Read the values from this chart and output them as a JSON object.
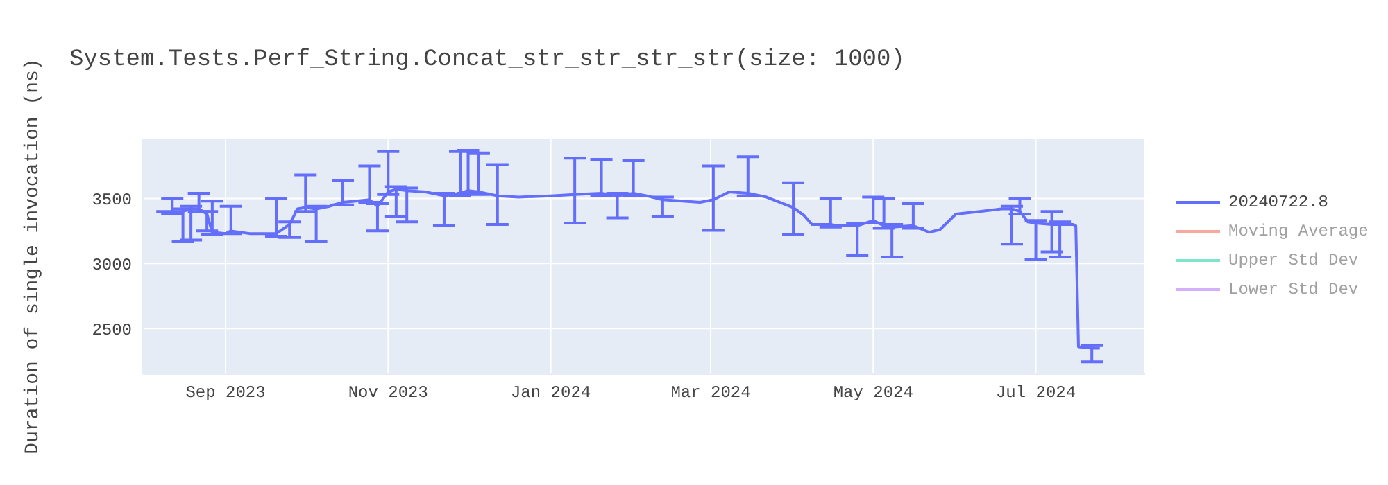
{
  "chart_data": {
    "type": "line",
    "title": "System.Tests.Perf_String.Concat_str_str_str_str(size: 1000)",
    "ylabel": "Duration of single invocation (ns)",
    "x": [
      "2023-08-06",
      "2023-08-12",
      "2023-08-16",
      "2023-08-19",
      "2023-08-22",
      "2023-08-25",
      "2023-08-27",
      "2023-09-01",
      "2023-09-03",
      "2023-09-10",
      "2023-09-20",
      "2023-09-25",
      "2023-09-28",
      "2023-10-01",
      "2023-10-05",
      "2023-10-10",
      "2023-10-15",
      "2023-10-20",
      "2023-10-25",
      "2023-10-28",
      "2023-11-01",
      "2023-11-04",
      "2023-11-08",
      "2023-11-15",
      "2023-11-22",
      "2023-11-28",
      "2023-12-01",
      "2023-12-05",
      "2023-12-12",
      "2023-12-20",
      "2024-01-01",
      "2024-01-10",
      "2024-01-20",
      "2024-01-26",
      "2024-02-01",
      "2024-02-06",
      "2024-02-12",
      "2024-02-26",
      "2024-03-02",
      "2024-03-08",
      "2024-03-15",
      "2024-03-22",
      "2024-04-01",
      "2024-04-05",
      "2024-04-08",
      "2024-04-15",
      "2024-04-18",
      "2024-04-25",
      "2024-05-01",
      "2024-05-05",
      "2024-05-08",
      "2024-05-16",
      "2024-05-22",
      "2024-05-26",
      "2024-06-01",
      "2024-06-10",
      "2024-06-18",
      "2024-06-22",
      "2024-06-25",
      "2024-06-28",
      "2024-07-01",
      "2024-07-07",
      "2024-07-10",
      "2024-07-15",
      "2024-07-16",
      "2024-07-17",
      "2024-07-22",
      "2024-07-25"
    ],
    "series": [
      {
        "name": "20240722.8",
        "color": "#636efa",
        "values": [
          3400,
          3400,
          3400,
          3420,
          3420,
          3380,
          3240,
          3230,
          3250,
          3230,
          3230,
          3300,
          3420,
          3430,
          3420,
          3440,
          3470,
          3480,
          3490,
          3440,
          3550,
          3570,
          3560,
          3550,
          3520,
          3540,
          3560,
          3550,
          3520,
          3510,
          3520,
          3530,
          3540,
          3520,
          3540,
          3520,
          3490,
          3470,
          3490,
          3550,
          3540,
          3510,
          3430,
          3370,
          3300,
          3300,
          3290,
          3290,
          3330,
          3290,
          3280,
          3290,
          3240,
          3260,
          3380,
          3400,
          3420,
          3420,
          3400,
          3320,
          3310,
          3300,
          3300,
          3300,
          3290,
          2360,
          2350,
          2350
        ],
        "errors": [
          null,
          [
            3380,
            3500
          ],
          [
            3170,
            3420
          ],
          [
            3180,
            3440
          ],
          [
            3400,
            3540
          ],
          [
            3250,
            3400
          ],
          [
            3220,
            3480
          ],
          null,
          [
            3230,
            3440
          ],
          null,
          [
            3210,
            3500
          ],
          [
            3200,
            3320
          ],
          null,
          [
            3400,
            3680
          ],
          [
            3170,
            3440
          ],
          null,
          [
            3450,
            3640
          ],
          null,
          [
            3470,
            3750
          ],
          [
            3250,
            3460
          ],
          [
            3530,
            3860
          ],
          [
            3360,
            3590
          ],
          [
            3320,
            3580
          ],
          null,
          [
            3290,
            3540
          ],
          [
            3520,
            3860
          ],
          [
            3540,
            3870
          ],
          [
            3530,
            3850
          ],
          [
            3300,
            3760
          ],
          null,
          null,
          [
            3310,
            3810
          ],
          [
            3520,
            3800
          ],
          [
            3350,
            3540
          ],
          [
            3520,
            3790
          ],
          null,
          [
            3360,
            3510
          ],
          null,
          [
            3255,
            3750
          ],
          null,
          [
            3520,
            3820
          ],
          null,
          [
            3220,
            3620
          ],
          null,
          null,
          [
            3280,
            3500
          ],
          null,
          [
            3060,
            3310
          ],
          [
            3310,
            3510
          ],
          [
            3270,
            3500
          ],
          [
            3050,
            3300
          ],
          [
            3270,
            3460
          ],
          null,
          null,
          null,
          null,
          null,
          [
            3150,
            3440
          ],
          [
            3380,
            3500
          ],
          null,
          [
            3030,
            3330
          ],
          [
            3090,
            3400
          ],
          [
            3050,
            3320
          ],
          null,
          null,
          null,
          [
            2245,
            2370
          ],
          null
        ]
      },
      {
        "name": "Moving Average",
        "color": "#ef553b",
        "values": [
          null,
          null,
          null,
          null,
          null,
          null,
          null,
          null,
          null,
          null,
          null,
          null,
          null,
          null,
          null,
          null,
          null,
          null,
          null,
          null,
          null,
          null,
          null,
          null,
          null,
          null,
          null,
          null,
          null,
          null,
          null,
          null,
          null,
          null,
          null,
          null,
          null,
          null,
          null,
          null,
          null,
          null,
          null,
          null,
          null,
          null,
          null,
          null,
          null,
          null,
          null,
          null,
          null,
          null,
          null,
          null,
          null,
          null,
          null,
          null,
          null,
          null,
          null,
          null,
          null,
          null,
          null,
          null
        ]
      },
      {
        "name": "Upper Std Dev",
        "color": "#00cc96",
        "values": [
          null,
          null,
          null,
          null,
          null,
          null,
          null,
          null,
          null,
          null,
          null,
          null,
          null,
          null,
          null,
          null,
          null,
          null,
          null,
          null,
          null,
          null,
          null,
          null,
          null,
          null,
          null,
          null,
          null,
          null,
          null,
          null,
          null,
          null,
          null,
          null,
          null,
          null,
          null,
          null,
          null,
          null,
          null,
          null,
          null,
          null,
          null,
          null,
          null,
          null,
          null,
          null,
          null,
          null,
          null,
          null,
          null,
          null,
          null,
          null,
          null,
          null,
          null,
          null,
          null,
          null,
          null,
          null
        ]
      },
      {
        "name": "Lower Std Dev",
        "color": "#ab63fa",
        "values": [
          null,
          null,
          null,
          null,
          null,
          null,
          null,
          null,
          null,
          null,
          null,
          null,
          null,
          null,
          null,
          null,
          null,
          null,
          null,
          null,
          null,
          null,
          null,
          null,
          null,
          null,
          null,
          null,
          null,
          null,
          null,
          null,
          null,
          null,
          null,
          null,
          null,
          null,
          null,
          null,
          null,
          null,
          null,
          null,
          null,
          null,
          null,
          null,
          null,
          null,
          null,
          null,
          null,
          null,
          null,
          null,
          null,
          null,
          null,
          null,
          null,
          null,
          null,
          null,
          null,
          null,
          null,
          null
        ]
      }
    ],
    "xlim": [
      "2023-08-01",
      "2024-08-11"
    ],
    "xticks": [
      {
        "value": "2023-09-01",
        "label": "Sep 2023"
      },
      {
        "value": "2023-11-01",
        "label": "Nov 2023"
      },
      {
        "value": "2024-01-01",
        "label": "Jan 2024"
      },
      {
        "value": "2024-03-01",
        "label": "Mar 2024"
      },
      {
        "value": "2024-05-01",
        "label": "May 2024"
      },
      {
        "value": "2024-07-01",
        "label": "Jul 2024"
      }
    ],
    "ylim": [
      2150,
      3960
    ],
    "yticks": [
      2500,
      3000,
      3500
    ],
    "grid": true,
    "legend": "top right",
    "marker": "none",
    "line_style": "solid"
  }
}
